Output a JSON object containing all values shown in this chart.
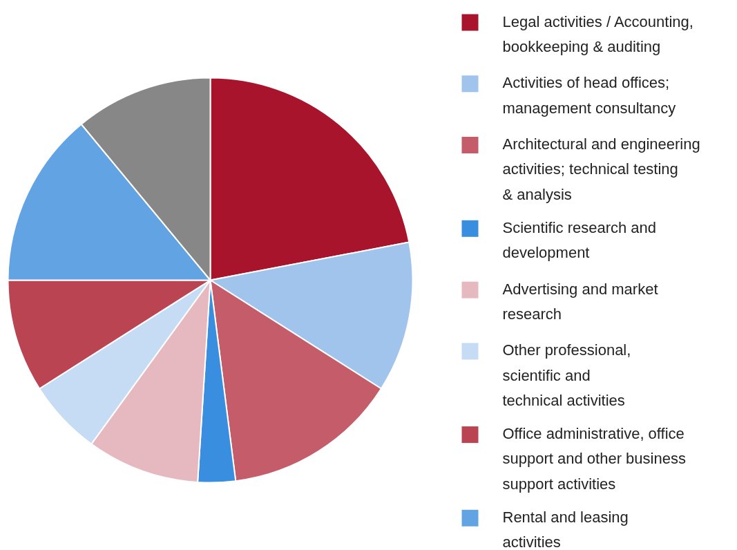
{
  "chart_data": {
    "type": "pie",
    "legend": "right",
    "categories": [
      "Legal activities / Accounting,\nbookkeeping & auditing",
      "Activities of head offices;\nmanagement consultancy",
      "Architectural and engineering\nactivities; technical testing\n& analysis",
      "Scientific research and\ndevelopment",
      "Advertising and market\nresearch",
      "Other professional,\nscientific and\ntechnical activities",
      "Office administrative, office\nsupport and other business\nsupport activities",
      "Rental and leasing\nactivities",
      null
    ],
    "values": [
      22,
      12,
      14,
      3,
      9,
      6,
      9,
      14,
      11
    ],
    "colors": [
      "#a8142c",
      "#a0c4ec",
      "#c45c6a",
      "#3a8ee0",
      "#e6b8c0",
      "#c6dcf4",
      "#bb4452",
      "#62a3e3",
      "#878787"
    ]
  }
}
